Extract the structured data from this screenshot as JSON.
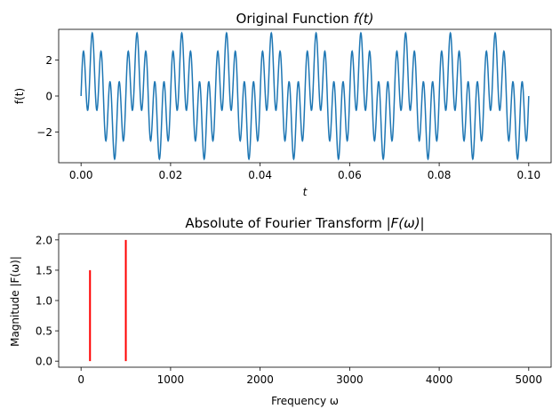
{
  "chart_data": [
    {
      "type": "line",
      "title_prefix": "Original Function ",
      "title_math": "f(t)",
      "xlabel": "t",
      "ylabel": "f(t)",
      "xlim": [
        -0.005,
        0.105
      ],
      "ylim": [
        -3.7,
        3.7
      ],
      "x_ticks": [
        0.0,
        0.02,
        0.04,
        0.06,
        0.08,
        0.1
      ],
      "x_tick_labels": [
        "0.00",
        "0.02",
        "0.04",
        "0.06",
        "0.08",
        "0.10"
      ],
      "y_ticks": [
        -2,
        0,
        2
      ],
      "y_tick_labels": [
        "−2",
        "0",
        "2"
      ],
      "series": [
        {
          "color": "#1f77b4",
          "function": "1.5*sin(2*pi*100*t) + 2*sin(2*pi*500*t)",
          "x_range": [
            0.0,
            0.1
          ],
          "components": [
            {
              "amplitude": 1.5,
              "frequency": 100
            },
            {
              "amplitude": 2.0,
              "frequency": 500
            }
          ]
        }
      ],
      "grid": false,
      "legend": "none"
    },
    {
      "type": "bar",
      "title_prefix": "Absolute of Fourier Transform ",
      "title_math": "|F(ω)|",
      "xlabel": "Frequency ω",
      "ylabel": "Magnitude |F(ω)|",
      "xlim": [
        -250,
        5250
      ],
      "ylim": [
        -0.1,
        2.1
      ],
      "x_ticks": [
        0,
        1000,
        2000,
        3000,
        4000,
        5000
      ],
      "x_tick_labels": [
        "0",
        "1000",
        "2000",
        "3000",
        "4000",
        "5000"
      ],
      "y_ticks": [
        0.0,
        0.5,
        1.0,
        1.5,
        2.0
      ],
      "y_tick_labels": [
        "0.0",
        "0.5",
        "1.0",
        "1.5",
        "2.0"
      ],
      "series": [
        {
          "color": "#ff0000",
          "x": [
            100,
            500
          ],
          "values": [
            1.5,
            2.0
          ]
        }
      ],
      "grid": false,
      "legend": "none"
    }
  ]
}
